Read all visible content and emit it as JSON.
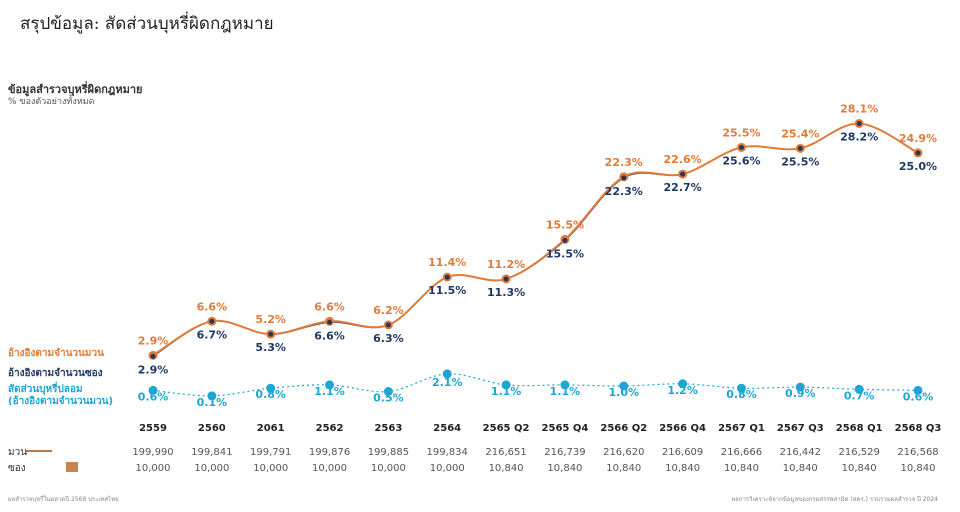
{
  "page": {
    "title": "สรุปข้อมูล: สัดส่วนบุหรี่ผิดกฎหมาย",
    "subtitle": "ข้อมูลสำรวจบุหรี่ผิดกฎหมาย",
    "subnote": "% ของตัวอย่างทั้งหมด",
    "footer_left": "ผลสำรวจบุหรี่ในตลาดปี 2568 ประเทศไทย",
    "footer_right": "ผลการวิเคราะห์จากข้อมูลของกรมสรรพสามิต (สคร.) รวบรวมผลสำรวจ ปี 2024"
  },
  "legend": {
    "pack": "อ้างอิงตามจำนวนมวน",
    "stick": "อ้างอิงตามจำนวนซอง",
    "fake_line1": "สัดส่วนบุหรี่ปลอม",
    "fake_line2": "(อ้างอิงตามจำนวนมวน)"
  },
  "table": {
    "row1_label": "มวน",
    "row2_label": "ซอง"
  },
  "chart_data": {
    "type": "line",
    "title": "ข้อมูลสำรวจบุหรี่ผิดกฎหมาย",
    "ylabel": "% ของตัวอย่างทั้งหมด",
    "categories": [
      "2559",
      "2560",
      "2061",
      "2562",
      "2563",
      "2564",
      "2565 Q2",
      "2565 Q4",
      "2566 Q2",
      "2566 Q4",
      "2567 Q1",
      "2567 Q3",
      "2568 Q1",
      "2568 Q3"
    ],
    "ylim": [
      0,
      30
    ],
    "series": [
      {
        "name": "อ้างอิงตามจำนวนมวน",
        "color": "#e07b39",
        "values": [
          2.9,
          6.6,
          5.2,
          6.6,
          6.2,
          11.4,
          11.2,
          15.5,
          22.3,
          22.6,
          25.5,
          25.4,
          28.1,
          24.9
        ],
        "labels": [
          "2.9%",
          "6.6%",
          "5.2%",
          "6.6%",
          "6.2%",
          "11.4%",
          "11.2%",
          "15.5%",
          "22.3%",
          "22.6%",
          "25.5%",
          "25.4%",
          "28.1%",
          "24.9%"
        ]
      },
      {
        "name": "อ้างอิงตามจำนวนซอง",
        "color": "#1f3864",
        "values": [
          2.9,
          6.7,
          5.3,
          6.6,
          6.3,
          11.5,
          11.3,
          15.5,
          22.3,
          22.7,
          25.6,
          25.5,
          28.2,
          25.0
        ],
        "labels": [
          "2.9%",
          "6.7%",
          "5.3%",
          "6.6%",
          "6.3%",
          "11.5%",
          "11.3%",
          "15.5%",
          "22.3%",
          "22.7%",
          "25.6%",
          "25.5%",
          "28.2%",
          "25.0%"
        ]
      },
      {
        "name": "สัดส่วนบุหรี่ปลอม",
        "color": "#1ea5d4",
        "values": [
          0.6,
          0.1,
          0.8,
          1.1,
          0.5,
          2.1,
          1.1,
          1.1,
          1.0,
          1.2,
          0.8,
          0.9,
          0.7,
          0.6
        ],
        "labels": [
          "0.6%",
          "0.1%",
          "0.8%",
          "1.1%",
          "0.5%",
          "2.1%",
          "1.1%",
          "1.1%",
          "1.0%",
          "1.2%",
          "0.8%",
          "0.9%",
          "0.7%",
          "0.6%"
        ]
      }
    ],
    "sample_sticks": [
      "199,990",
      "199,841",
      "199,791",
      "199,876",
      "199,885",
      "199,834",
      "216,651",
      "216,739",
      "216,620",
      "216,609",
      "216,666",
      "216,442",
      "216,529",
      "216,568"
    ],
    "sample_packs": [
      "10,000",
      "10,000",
      "10,000",
      "10,000",
      "10,000",
      "10,000",
      "10,840",
      "10,840",
      "10,840",
      "10,840",
      "10,840",
      "10,840",
      "10,840",
      "10,840"
    ]
  }
}
